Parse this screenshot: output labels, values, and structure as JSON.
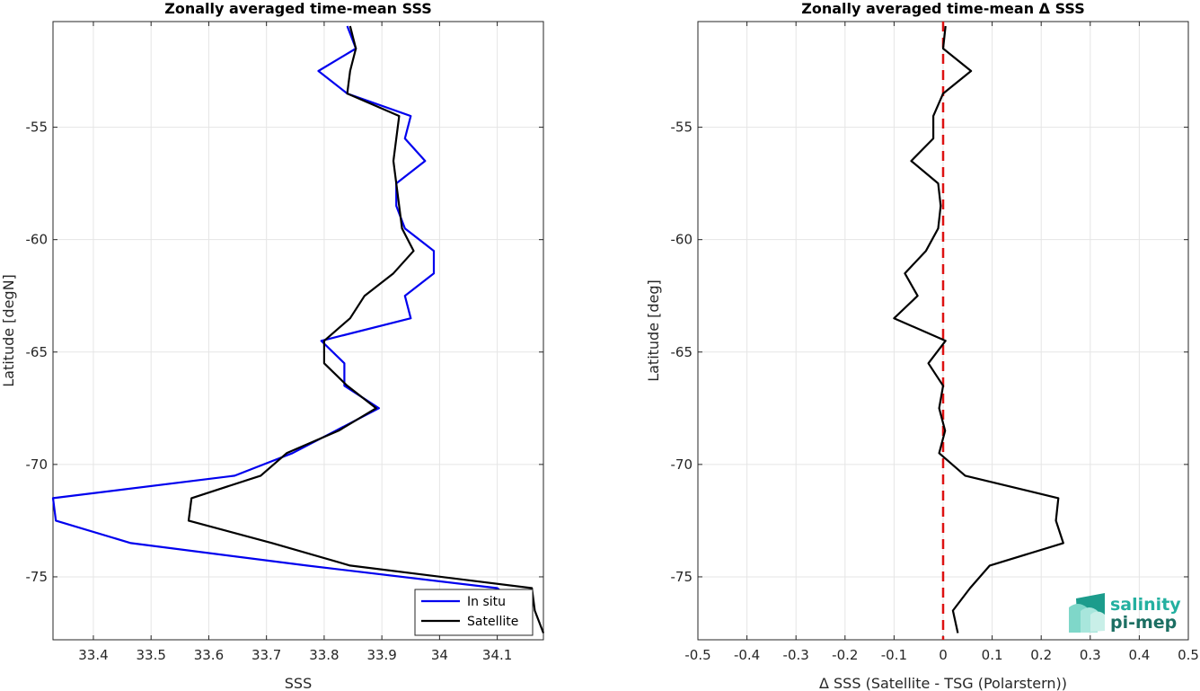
{
  "colors": {
    "in_situ": "#0000ee",
    "satellite": "#000000",
    "zero_line": "#dd1111",
    "logo_light": "#23b0a0",
    "logo_dark": "#1c6f63"
  },
  "logo": {
    "top": "salinity",
    "bottom": "pi-mep"
  },
  "chart_data": [
    {
      "type": "line",
      "title": "Zonally averaged time-mean SSS",
      "xlabel": "SSS",
      "ylabel": "Latitude [degN]",
      "xlim": [
        33.33,
        34.18
      ],
      "ylim": [
        -77.8,
        -50.3
      ],
      "xticks": [
        33.4,
        33.5,
        33.6,
        33.7,
        33.8,
        33.9,
        34.0,
        34.1
      ],
      "xtick_labels": [
        "33.4",
        "33.5",
        "33.6",
        "33.7",
        "33.8",
        "33.9",
        "34",
        "34.1"
      ],
      "yticks": [
        -55,
        -60,
        -65,
        -70,
        -75
      ],
      "ytick_labels": [
        "-55",
        "-60",
        "-65",
        "-70",
        "-75"
      ],
      "grid": true,
      "legend": {
        "position": "bottom-right",
        "entries": [
          "In situ",
          "Satellite"
        ]
      },
      "series": [
        {
          "name": "In situ",
          "color_key": "in_situ",
          "points": [
            [
              33.84,
              -50.5
            ],
            [
              33.855,
              -51.5
            ],
            [
              33.79,
              -52.5
            ],
            [
              33.84,
              -53.5
            ],
            [
              33.95,
              -54.5
            ],
            [
              33.94,
              -55.5
            ],
            [
              33.975,
              -56.5
            ],
            [
              33.925,
              -57.5
            ],
            [
              33.925,
              -58.5
            ],
            [
              33.94,
              -59.5
            ],
            [
              33.99,
              -60.5
            ],
            [
              33.99,
              -61.5
            ],
            [
              33.94,
              -62.5
            ],
            [
              33.95,
              -63.5
            ],
            [
              33.795,
              -64.5
            ],
            [
              33.835,
              -65.5
            ],
            [
              33.835,
              -66.5
            ],
            [
              33.895,
              -67.5
            ],
            [
              33.82,
              -68.5
            ],
            [
              33.745,
              -69.5
            ],
            [
              33.645,
              -70.5
            ],
            [
              33.33,
              -71.5
            ],
            [
              33.335,
              -72.5
            ],
            [
              33.465,
              -73.5
            ],
            [
              33.77,
              -74.5
            ],
            [
              34.1,
              -75.5
            ],
            [
              34.15,
              -76.5
            ],
            [
              34.15,
              -77.5
            ]
          ]
        },
        {
          "name": "Satellite",
          "color_key": "satellite",
          "points": [
            [
              33.845,
              -50.5
            ],
            [
              33.855,
              -51.5
            ],
            [
              33.845,
              -52.5
            ],
            [
              33.84,
              -53.5
            ],
            [
              33.93,
              -54.5
            ],
            [
              33.925,
              -55.5
            ],
            [
              33.92,
              -56.5
            ],
            [
              33.925,
              -57.5
            ],
            [
              33.93,
              -58.5
            ],
            [
              33.935,
              -59.5
            ],
            [
              33.955,
              -60.5
            ],
            [
              33.92,
              -61.5
            ],
            [
              33.87,
              -62.5
            ],
            [
              33.845,
              -63.5
            ],
            [
              33.8,
              -64.5
            ],
            [
              33.8,
              -65.5
            ],
            [
              33.84,
              -66.5
            ],
            [
              33.89,
              -67.5
            ],
            [
              33.825,
              -68.5
            ],
            [
              33.735,
              -69.5
            ],
            [
              33.69,
              -70.5
            ],
            [
              33.57,
              -71.5
            ],
            [
              33.565,
              -72.5
            ],
            [
              33.71,
              -73.5
            ],
            [
              33.845,
              -74.5
            ],
            [
              34.16,
              -75.5
            ],
            [
              34.165,
              -76.5
            ],
            [
              34.18,
              -77.5
            ]
          ]
        }
      ]
    },
    {
      "type": "line",
      "title": "Zonally averaged time-mean Δ SSS",
      "xlabel": "Δ SSS (Satellite - TSG (Polarstern))",
      "ylabel": "Latitude [deg]",
      "xlim": [
        -0.5,
        0.5
      ],
      "ylim": [
        -77.8,
        -50.3
      ],
      "xticks": [
        -0.5,
        -0.4,
        -0.3,
        -0.2,
        -0.1,
        0,
        0.1,
        0.2,
        0.3,
        0.4,
        0.5
      ],
      "xtick_labels": [
        "-0.5",
        "-0.4",
        "-0.3",
        "-0.2",
        "-0.1",
        "0",
        "0.1",
        "0.2",
        "0.3",
        "0.4",
        "0.5"
      ],
      "yticks": [
        -55,
        -60,
        -65,
        -70,
        -75
      ],
      "ytick_labels": [
        "-55",
        "-60",
        "-65",
        "-70",
        "-75"
      ],
      "grid": true,
      "zero_line": {
        "x": 0,
        "style": "dashed",
        "color_key": "zero_line"
      },
      "series": [
        {
          "color_key": "satellite",
          "points": [
            [
              0.005,
              -50.5
            ],
            [
              0.0,
              -51.5
            ],
            [
              0.057,
              -52.5
            ],
            [
              0.0,
              -53.5
            ],
            [
              -0.02,
              -54.5
            ],
            [
              -0.02,
              -55.5
            ],
            [
              -0.065,
              -56.5
            ],
            [
              -0.01,
              -57.5
            ],
            [
              -0.005,
              -58.5
            ],
            [
              -0.01,
              -59.5
            ],
            [
              -0.035,
              -60.5
            ],
            [
              -0.078,
              -61.5
            ],
            [
              -0.052,
              -62.5
            ],
            [
              -0.1,
              -63.5
            ],
            [
              0.005,
              -64.5
            ],
            [
              -0.03,
              -65.5
            ],
            [
              0.0,
              -66.5
            ],
            [
              -0.008,
              -67.5
            ],
            [
              0.004,
              -68.5
            ],
            [
              -0.008,
              -69.5
            ],
            [
              0.045,
              -70.5
            ],
            [
              0.235,
              -71.5
            ],
            [
              0.23,
              -72.5
            ],
            [
              0.245,
              -73.5
            ],
            [
              0.095,
              -74.5
            ],
            [
              0.055,
              -75.5
            ],
            [
              0.02,
              -76.5
            ],
            [
              0.03,
              -77.5
            ]
          ]
        }
      ]
    }
  ]
}
